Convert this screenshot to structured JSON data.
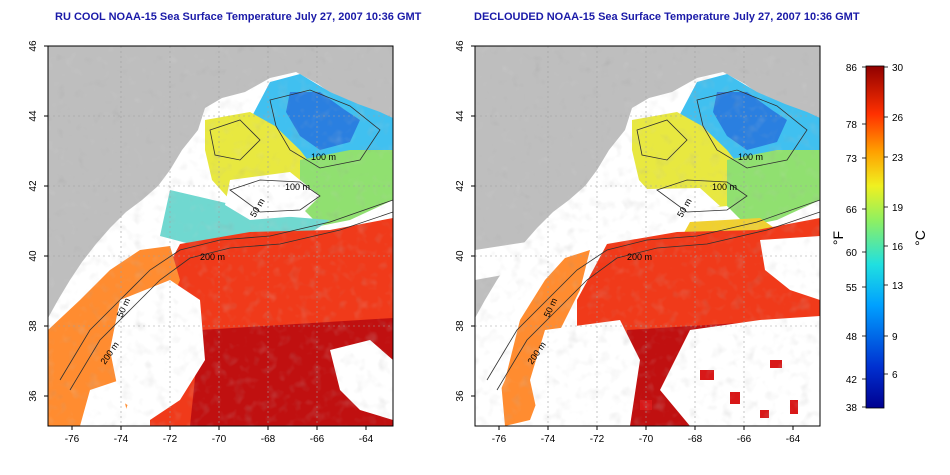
{
  "titles": {
    "left": "RU COOL NOAA-15 Sea Surface Temperature July 27, 2007 10:36 GMT",
    "right": "DECLOUDED NOAA-15 Sea Surface Temperature July 27, 2007 10:36 GMT"
  },
  "y_ticks": [
    "46",
    "44",
    "42",
    "40",
    "38",
    "36"
  ],
  "x_ticks": [
    "-76",
    "-74",
    "-72",
    "-70",
    "-68",
    "-66",
    "-64"
  ],
  "contour_labels": {
    "left": [
      "100 m",
      "100 m",
      "50 m",
      "200 m",
      "50 m",
      "200 m"
    ],
    "right": [
      "100 m",
      "100 m",
      "50 m",
      "200 m",
      "50 m",
      "200 m"
    ]
  },
  "colorbar": {
    "fahrenheit_ticks": [
      "86",
      "78",
      "73",
      "66",
      "60",
      "55",
      "48",
      "42",
      "38"
    ],
    "celsius_ticks": [
      "30",
      "26",
      "23",
      "19",
      "16",
      "13",
      "9",
      "6"
    ],
    "fahrenheit_unit": "°F",
    "celsius_unit": "°C"
  },
  "colors": {
    "title": "#1a1aa8",
    "land": "#bebebe",
    "cloud_mask": "#ffffff",
    "cold": "#0018a0",
    "warm": "#b00000"
  }
}
